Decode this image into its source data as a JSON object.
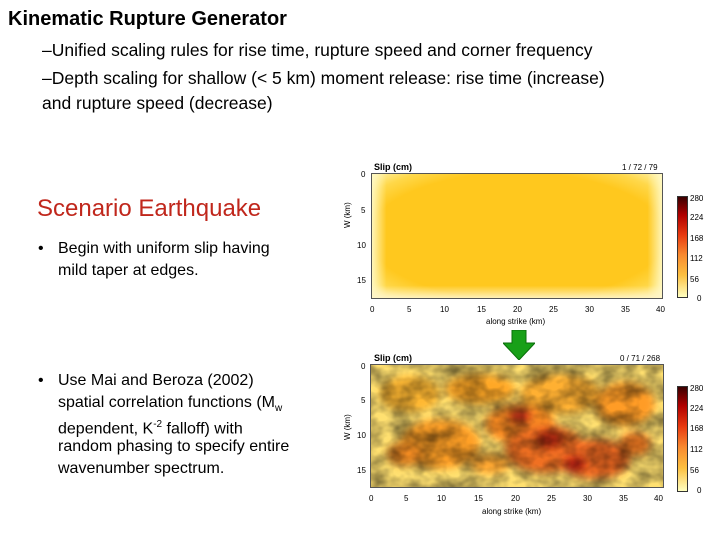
{
  "title": "Kinematic Rupture Generator",
  "intro_bullets": [
    "–Unified scaling rules for rise time, rupture speed and corner frequency",
    "–Depth scaling  for shallow (< 5 km) moment release: rise time (increase)",
    "and rupture speed (decrease)"
  ],
  "section_title": "Scenario Earthquake",
  "points": {
    "p1_dot": "•",
    "p1_line1": "Begin with uniform slip having",
    "p1_line2": "mild taper at edges.",
    "p2_dot": "•",
    "p2_line1": "Use Mai and Beroza (2002)",
    "p2_line2a": "spatial correlation functions (M",
    "p2_line2sub": "w",
    "p2_line3a": "dependent, K",
    "p2_line3sup": "-2",
    "p2_line3b": " falloff) with",
    "p2_line4": "random phasing to specify entire",
    "p2_line5": "wavenumber spectrum."
  },
  "plot_top": {
    "title": "Slip (cm)",
    "stats": "1 / 72 / 79",
    "ylabel": "W (km)",
    "xlabel": "along strike (km)",
    "yticks": [
      "0",
      "5",
      "10",
      "15"
    ],
    "xticks": [
      "0",
      "5",
      "10",
      "15",
      "20",
      "25",
      "30",
      "35",
      "40"
    ],
    "colorbar_ticks": [
      "280",
      "224",
      "168",
      "112",
      "56",
      "0"
    ]
  },
  "plot_bottom": {
    "title": "Slip (cm)",
    "stats": "0 / 71 / 268",
    "ylabel": "W (km)",
    "xlabel": "along strike (km)",
    "yticks": [
      "0",
      "5",
      "10",
      "15"
    ],
    "xticks": [
      "0",
      "5",
      "10",
      "15",
      "20",
      "25",
      "30",
      "35",
      "40"
    ],
    "colorbar_ticks": [
      "280",
      "224",
      "168",
      "112",
      "56",
      "0"
    ]
  },
  "colors": {
    "section_title": "#c0271c",
    "arrow": "#18a018",
    "uniform_slip": "#ffc81e"
  }
}
